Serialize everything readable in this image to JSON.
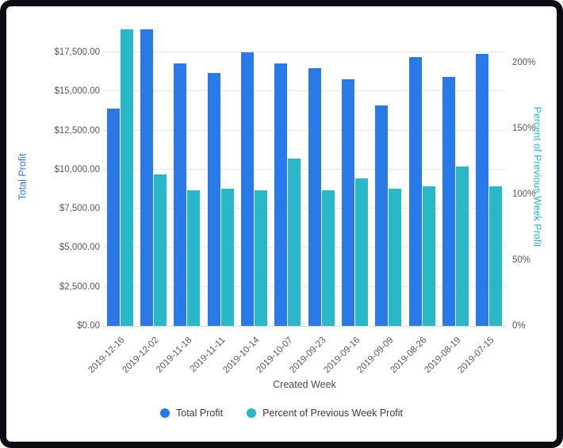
{
  "chart_data": {
    "type": "bar",
    "title": "",
    "xlabel": "Created Week",
    "ylabel_left": "Total Profit",
    "ylabel_right": "Percent of Previous Week Profit",
    "grid": true,
    "legend_position": "bottom",
    "categories": [
      "2019-12-16",
      "2019-12-02",
      "2019-11-18",
      "2019-11-11",
      "2019-10-14",
      "2019-10-07",
      "2019-09-23",
      "2019-09-16",
      "2019-09-09",
      "2019-08-26",
      "2019-08-19",
      "2019-07-15"
    ],
    "series": [
      {
        "name": "Total Profit",
        "axis": "left",
        "color": "#2979e8",
        "values": [
          13900,
          19000,
          16800,
          16200,
          17500,
          16800,
          16500,
          15800,
          14100,
          17200,
          15950,
          17400
        ]
      },
      {
        "name": "Percent of Previous Week Profit",
        "axis": "right",
        "color": "#29b8c8",
        "values": [
          225,
          115,
          103,
          104,
          103,
          127,
          103,
          112,
          104,
          106,
          121,
          106
        ]
      }
    ],
    "left_axis": {
      "ticks": [
        0,
        2500,
        5000,
        7500,
        10000,
        12500,
        15000,
        17500
      ],
      "labels": [
        "$0.00",
        "$2,500.00",
        "$5,000.00",
        "$7,500.00",
        "$10,000.00",
        "$12,500.00",
        "$15,000.00",
        "$17,500.00"
      ],
      "max": 19130
    },
    "right_axis": {
      "ticks": [
        0,
        50,
        100,
        150,
        200
      ],
      "labels": [
        "0%",
        "50%",
        "100%",
        "150%",
        "200%"
      ],
      "max": 227
    },
    "legend": [
      "Total Profit",
      "Percent of Previous Week Profit"
    ]
  }
}
